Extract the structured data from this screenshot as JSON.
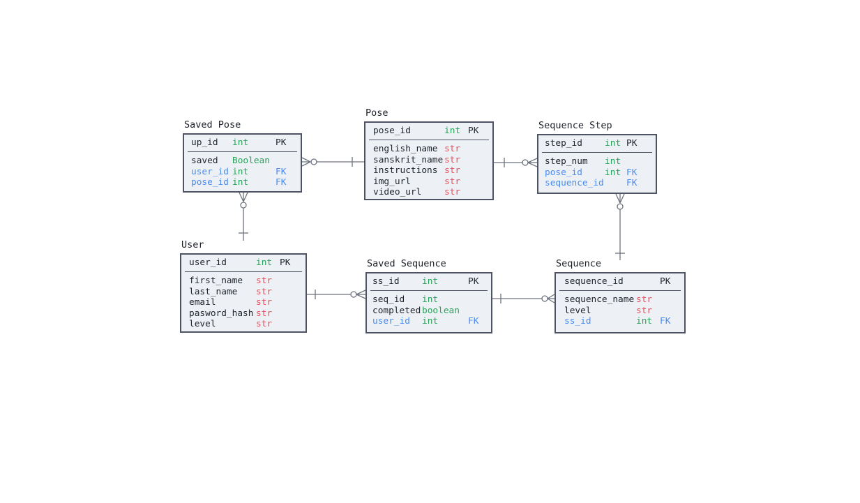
{
  "colors": {
    "background": "#ffffff",
    "table_fill": "#edf0f4",
    "table_border": "#4d5362",
    "text": "#1f242b",
    "fk_blue": "#4a8cf0",
    "connector_gray": "#6c727c",
    "type_colors": {
      "int": "#27a35a",
      "Boolean": "#27a35a",
      "boolean": "#27a35a",
      "str": "#e0545e"
    }
  },
  "tables": [
    {
      "name": "Saved Pose",
      "header": {
        "field": "up_id",
        "type": "int",
        "key": "PK"
      },
      "rows": [
        {
          "field": "saved",
          "type": "Boolean",
          "key": "",
          "fk": false
        },
        {
          "field": "user_id",
          "type": "int",
          "key": "FK",
          "fk": true
        },
        {
          "field": "pose_id",
          "type": "int",
          "key": "FK",
          "fk": true
        }
      ]
    },
    {
      "name": "Pose",
      "header": {
        "field": "pose_id",
        "type": "int",
        "key": "PK"
      },
      "rows": [
        {
          "field": "english_name",
          "type": "str",
          "key": "",
          "fk": false
        },
        {
          "field": "sanskrit_name",
          "type": "str",
          "key": "",
          "fk": false
        },
        {
          "field": "instructions",
          "type": "str",
          "key": "",
          "fk": false
        },
        {
          "field": "img_url",
          "type": "str",
          "key": "",
          "fk": false
        },
        {
          "field": "video_url",
          "type": "str",
          "key": "",
          "fk": false
        }
      ]
    },
    {
      "name": "Sequence Step",
      "header": {
        "field": "step_id",
        "type": "int",
        "key": "PK"
      },
      "rows": [
        {
          "field": "step_num",
          "type": "int",
          "key": "",
          "fk": false
        },
        {
          "field": "pose_id",
          "type": "int",
          "key": "FK",
          "fk": true
        },
        {
          "field": "sequence_id",
          "type": "",
          "key": "FK",
          "fk": true
        }
      ]
    },
    {
      "name": "User",
      "header": {
        "field": "user_id",
        "type": "int",
        "key": "PK"
      },
      "rows": [
        {
          "field": "first_name",
          "type": "str",
          "key": "",
          "fk": false
        },
        {
          "field": "last_name",
          "type": "str",
          "key": "",
          "fk": false
        },
        {
          "field": "email",
          "type": "str",
          "key": "",
          "fk": false
        },
        {
          "field": "pasword_hash",
          "type": "str",
          "key": "",
          "fk": false
        },
        {
          "field": "level",
          "type": "str",
          "key": "",
          "fk": false
        }
      ]
    },
    {
      "name": "Saved Sequence",
      "header": {
        "field": "ss_id",
        "type": "int",
        "key": "PK"
      },
      "rows": [
        {
          "field": "seq_id",
          "type": "int",
          "key": "",
          "fk": false
        },
        {
          "field": "completed",
          "type": "boolean",
          "key": "",
          "fk": false
        },
        {
          "field": "user_id",
          "type": "int",
          "key": "FK",
          "fk": true
        }
      ]
    },
    {
      "name": "Sequence",
      "header": {
        "field": "sequence_id",
        "type": "",
        "key": "PK"
      },
      "rows": [
        {
          "field": "sequence_name",
          "type": "str",
          "key": "",
          "fk": false
        },
        {
          "field": "level",
          "type": "str",
          "key": "",
          "fk": false
        },
        {
          "field": "ss_id",
          "type": "int",
          "key": "FK",
          "fk": true
        }
      ]
    }
  ],
  "relationships": [
    {
      "from": "Pose",
      "to": "Saved Pose",
      "from_cardinality": "one",
      "to_cardinality": "zero-or-many"
    },
    {
      "from": "Pose",
      "to": "Sequence Step",
      "from_cardinality": "one",
      "to_cardinality": "zero-or-many"
    },
    {
      "from": "User",
      "to": "Saved Pose",
      "from_cardinality": "one",
      "to_cardinality": "zero-or-many"
    },
    {
      "from": "Sequence",
      "to": "Sequence Step",
      "from_cardinality": "one",
      "to_cardinality": "zero-or-many"
    },
    {
      "from": "User",
      "to": "Saved Sequence",
      "from_cardinality": "one",
      "to_cardinality": "zero-or-many"
    },
    {
      "from": "Saved Sequence",
      "to": "Sequence",
      "from_cardinality": "one",
      "to_cardinality": "zero-or-many"
    }
  ]
}
